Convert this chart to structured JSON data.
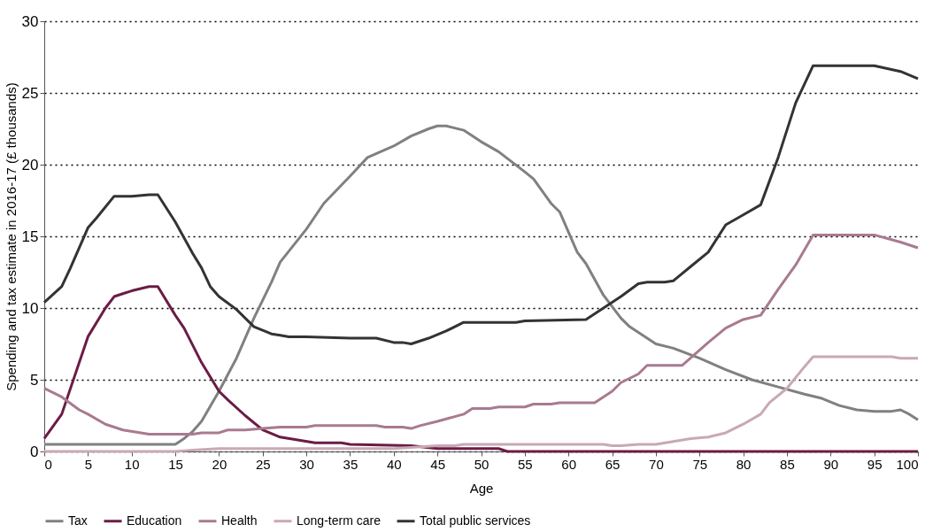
{
  "chart_data": {
    "type": "line",
    "xlabel": "Age",
    "ylabel": "Spending and tax estimate in 2016-17 (£ thousands)",
    "xlim": [
      0,
      100
    ],
    "xticks": [
      0,
      5,
      10,
      15,
      20,
      25,
      30,
      35,
      40,
      45,
      50,
      55,
      60,
      65,
      70,
      75,
      80,
      85,
      90,
      95,
      100
    ],
    "ylim": [
      0,
      30
    ],
    "yticks": [
      0,
      5,
      10,
      15,
      20,
      25,
      30
    ],
    "grid": "y",
    "legend": "bottom",
    "line_style": "solid",
    "marker": "none",
    "series": [
      {
        "name": "Tax",
        "color": "#808080",
        "x": [
          0,
          15,
          16,
          17,
          18,
          20,
          22,
          24,
          26,
          27,
          30,
          32,
          35,
          37,
          40,
          42,
          44,
          45,
          46,
          48,
          50,
          52,
          55,
          56,
          58,
          59,
          61,
          62,
          64,
          66,
          67,
          70,
          72,
          75,
          78,
          81,
          84,
          87,
          89,
          91,
          93,
          95,
          97,
          98,
          99,
          100
        ],
        "values": [
          0.5,
          0.5,
          0.9,
          1.4,
          2.1,
          4.2,
          6.5,
          9.3,
          11.8,
          13.2,
          15.5,
          17.3,
          19.2,
          20.5,
          21.3,
          22.0,
          22.5,
          22.7,
          22.7,
          22.4,
          21.6,
          20.9,
          19.5,
          19.0,
          17.3,
          16.7,
          13.9,
          13.1,
          10.9,
          9.3,
          8.7,
          7.5,
          7.2,
          6.5,
          5.7,
          5.0,
          4.5,
          4.0,
          3.7,
          3.2,
          2.9,
          2.8,
          2.8,
          2.9,
          2.6,
          2.2
        ]
      },
      {
        "name": "Education",
        "color": "#6b1c45",
        "x": [
          0,
          2,
          5,
          7,
          8,
          9,
          10,
          12,
          13,
          15,
          16,
          18,
          20,
          21,
          23,
          25,
          27,
          29,
          31,
          34,
          35,
          42,
          45,
          52,
          53,
          100
        ],
        "values": [
          0.9,
          2.6,
          8.0,
          10.0,
          10.8,
          11.0,
          11.2,
          11.5,
          11.5,
          9.5,
          8.6,
          6.2,
          4.2,
          3.6,
          2.5,
          1.5,
          1.0,
          0.8,
          0.6,
          0.6,
          0.5,
          0.4,
          0.2,
          0.2,
          0.0,
          0.0
        ]
      },
      {
        "name": "Health",
        "color": "#a87a90",
        "x": [
          0,
          2,
          4,
          5,
          7,
          9,
          12,
          17,
          18,
          20,
          21,
          23,
          25,
          27,
          30,
          31,
          38,
          39,
          41,
          42,
          43,
          45,
          48,
          49,
          51,
          52,
          55,
          56,
          58,
          59,
          63,
          65,
          66,
          68,
          69,
          73,
          76,
          78,
          80,
          82,
          84,
          86,
          88,
          95,
          98,
          100
        ],
        "values": [
          4.4,
          3.8,
          2.9,
          2.6,
          1.9,
          1.5,
          1.2,
          1.2,
          1.3,
          1.3,
          1.5,
          1.5,
          1.6,
          1.7,
          1.7,
          1.8,
          1.8,
          1.7,
          1.7,
          1.6,
          1.8,
          2.1,
          2.6,
          3.0,
          3.0,
          3.1,
          3.1,
          3.3,
          3.3,
          3.4,
          3.4,
          4.2,
          4.8,
          5.4,
          6.0,
          6.0,
          7.6,
          8.6,
          9.2,
          9.5,
          11.3,
          13.0,
          15.1,
          15.1,
          14.6,
          14.2
        ]
      },
      {
        "name": "Long-term care",
        "color": "#c9a8b6",
        "x": [
          0,
          15,
          17,
          20,
          40,
          45,
          47,
          48,
          64,
          65,
          66,
          68,
          70,
          72,
          74,
          76,
          78,
          80,
          82,
          83,
          85,
          87,
          88,
          97,
          98,
          100
        ],
        "values": [
          0.0,
          0.0,
          0.1,
          0.2,
          0.2,
          0.4,
          0.4,
          0.5,
          0.5,
          0.4,
          0.4,
          0.5,
          0.5,
          0.7,
          0.9,
          1.0,
          1.3,
          1.9,
          2.6,
          3.4,
          4.4,
          5.9,
          6.6,
          6.6,
          6.5,
          6.5
        ]
      },
      {
        "name": "Total public services",
        "color": "#333333",
        "x": [
          0,
          2,
          3,
          5,
          6,
          8,
          10,
          12,
          13,
          15,
          17,
          18,
          19,
          20,
          22,
          24,
          26,
          27,
          28,
          30,
          35,
          38,
          40,
          41,
          42,
          44,
          46,
          48,
          50,
          54,
          55,
          62,
          64,
          66,
          68,
          69,
          71,
          72,
          74,
          76,
          78,
          80,
          82,
          84,
          86,
          88,
          95,
          98,
          100
        ],
        "values": [
          10.4,
          11.5,
          12.8,
          15.6,
          16.3,
          17.8,
          17.8,
          17.9,
          17.9,
          16.0,
          13.8,
          12.8,
          11.5,
          10.8,
          9.9,
          8.7,
          8.2,
          8.1,
          8.0,
          8.0,
          7.9,
          7.9,
          7.6,
          7.6,
          7.5,
          7.9,
          8.4,
          9.0,
          9.0,
          9.0,
          9.1,
          9.2,
          10.0,
          10.8,
          11.7,
          11.8,
          11.8,
          11.9,
          12.9,
          13.9,
          15.8,
          16.5,
          17.2,
          20.5,
          24.3,
          26.9,
          26.9,
          26.5,
          26.0
        ]
      }
    ]
  }
}
